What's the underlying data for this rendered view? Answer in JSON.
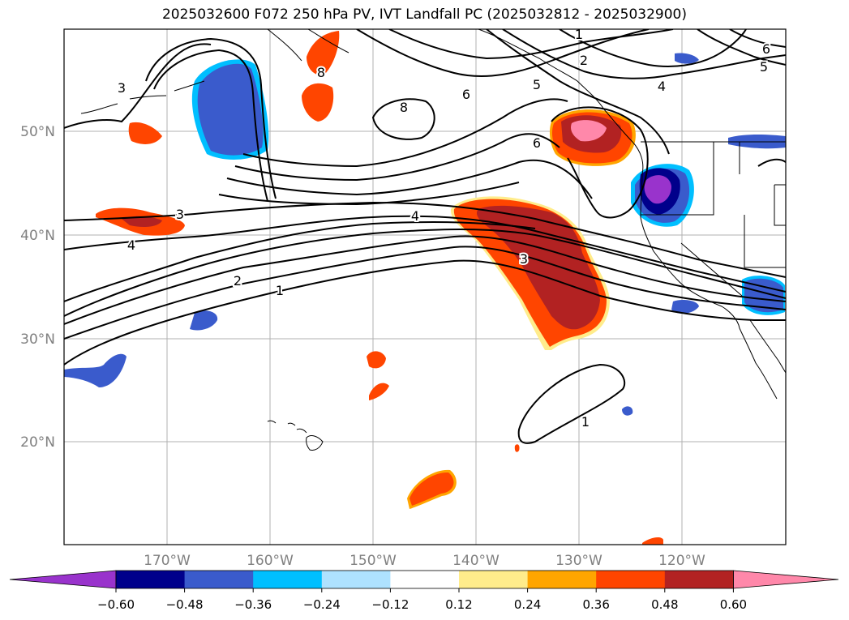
{
  "title": "2025032600 F072 250 hPa PV, IVT Landfall PC (2025032812 - 2025032900)",
  "lat_labels": [
    "50°N",
    "40°N",
    "30°N",
    "20°N"
  ],
  "lon_labels": [
    "170°W",
    "160°W",
    "150°W",
    "140°W",
    "130°W",
    "120°W"
  ],
  "colorbar": {
    "ticks": [
      "−0.60",
      "−0.48",
      "−0.36",
      "−0.24",
      "−0.12",
      "0.12",
      "0.24",
      "0.36",
      "0.48",
      "0.60"
    ],
    "colors": [
      "#9933cc",
      "#00008b",
      "#3a5bcc",
      "#00bfff",
      "#aee2ff",
      "#ffffff",
      "#ffec8b",
      "#ffa500",
      "#ff4500",
      "#b22222",
      "#ff88aa"
    ]
  },
  "contour_labels": [
    "1",
    "2",
    "5",
    "4",
    "6",
    "8",
    "5",
    "6",
    "3",
    "6",
    "8",
    "3",
    "4",
    "4",
    "3",
    "2",
    "1",
    "1"
  ],
  "colors": {
    "grid": "#b0b0b0",
    "tick_label": "#808080"
  }
}
